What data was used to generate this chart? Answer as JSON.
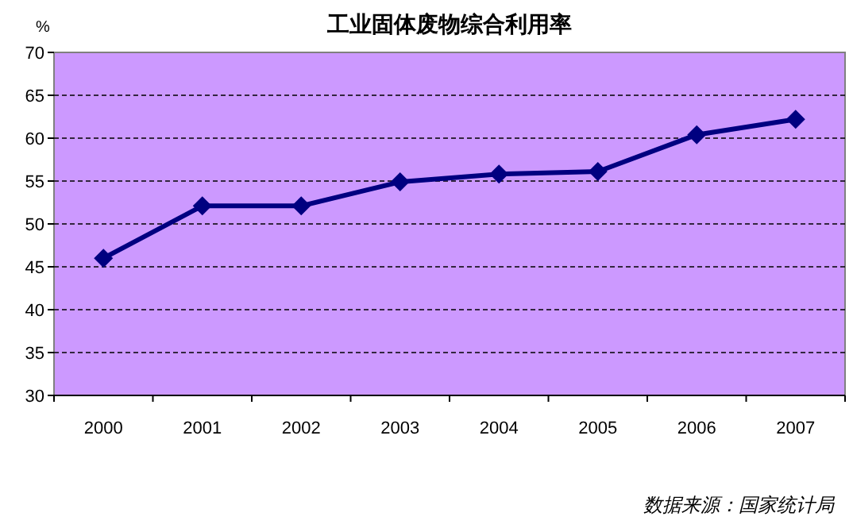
{
  "chart_data": {
    "type": "line",
    "title": "工业固体废物综合利用率",
    "ylabel": "%",
    "categories": [
      "2000",
      "2001",
      "2002",
      "2003",
      "2004",
      "2005",
      "2006",
      "2007"
    ],
    "series": [
      {
        "color": "#000080",
        "values": [
          46.0,
          52.1,
          52.1,
          54.9,
          55.8,
          56.1,
          60.4,
          62.2
        ]
      }
    ],
    "ylim": [
      30,
      70
    ],
    "yticks": [
      30,
      35,
      40,
      45,
      50,
      55,
      60,
      65,
      70
    ],
    "grid": "y",
    "marker": "diamond",
    "line_style": "solid",
    "annotations": [
      "数据来源：国家统计局"
    ]
  }
}
